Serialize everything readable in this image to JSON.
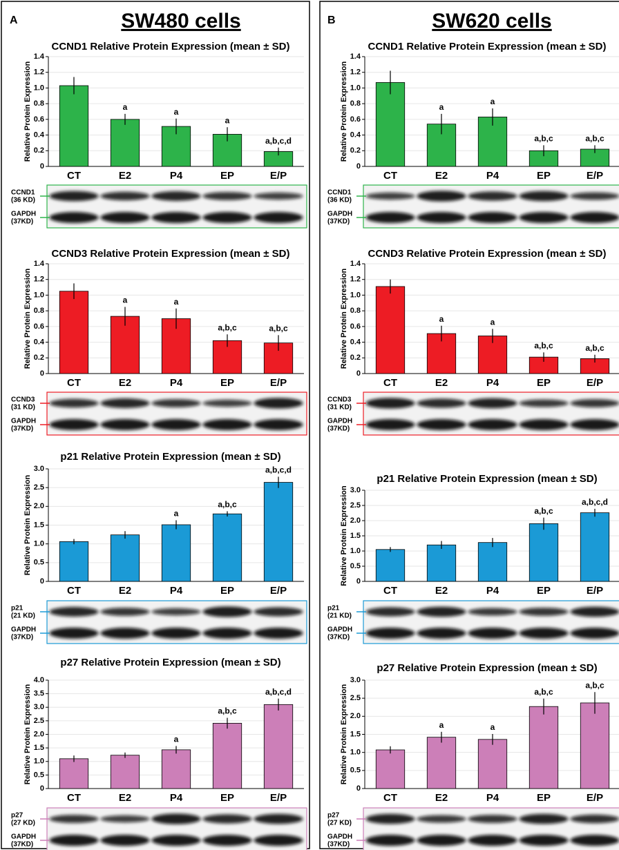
{
  "panels": [
    {
      "label": "A",
      "title": "SW480 cells"
    },
    {
      "label": "B",
      "title": "SW620 cells"
    }
  ],
  "chart_data": [
    {
      "type": "bar",
      "title": "CCND1 Relative Protein Expression (mean ± SD)",
      "y_label": "Relative Protein Expression",
      "color": "#2db34a",
      "categories": [
        "CT",
        "E2",
        "P4",
        "EP",
        "E/P"
      ],
      "values": [
        1.03,
        0.6,
        0.51,
        0.41,
        0.19
      ],
      "errors": [
        0.11,
        0.07,
        0.1,
        0.09,
        0.05
      ],
      "annotations": [
        null,
        "a",
        "a",
        "a",
        "a,b,c,d"
      ],
      "ylim": [
        0,
        1.4
      ],
      "yticks": [
        0,
        0.2,
        0.4,
        0.6,
        0.8,
        {
          "value": 1,
          "label": "1.0"
        },
        1.2,
        1.4
      ],
      "blot_labels": [
        [
          "CCND1",
          "(36 KD)"
        ],
        [
          "GAPDH",
          "(37KD)"
        ]
      ]
    },
    {
      "type": "bar",
      "title": "CCND3 Relative Protein Expression (mean ± SD)",
      "y_label": "Relative Protein Expression",
      "color": "#ed1c24",
      "categories": [
        "CT",
        "E2",
        "P4",
        "EP",
        "E/P"
      ],
      "values": [
        1.05,
        0.73,
        0.7,
        0.42,
        0.39
      ],
      "errors": [
        0.1,
        0.12,
        0.13,
        0.08,
        0.1
      ],
      "annotations": [
        null,
        "a",
        "a",
        "a,b,c",
        "a,b,c"
      ],
      "ylim": [
        0,
        1.4
      ],
      "yticks": [
        0,
        0.2,
        0.4,
        0.6,
        0.8,
        {
          "value": 1,
          "label": "1.0"
        },
        1.2,
        1.4
      ],
      "blot_labels": [
        [
          "CCND3",
          "(31 KD)"
        ],
        [
          "GAPDH",
          "(37KD)"
        ]
      ]
    },
    {
      "type": "bar",
      "title": "p21 Relative Protein Expression (mean ± SD)",
      "y_label": "Relative Protein Expression",
      "color": "#1b9ad6",
      "categories": [
        "CT",
        "E2",
        "P4",
        "EP",
        "E/P"
      ],
      "values": [
        1.06,
        1.24,
        1.51,
        1.8,
        2.64
      ],
      "errors": [
        0.07,
        0.1,
        0.12,
        0.07,
        0.15
      ],
      "annotations": [
        null,
        null,
        "a",
        "a,b,c",
        "a,b,c,d"
      ],
      "ylim": [
        0,
        3
      ],
      "yticks": [
        0,
        0.5,
        {
          "value": 1,
          "label": "1.0"
        },
        1.5,
        {
          "value": 2,
          "label": "2.0"
        },
        2.5,
        {
          "value": 3,
          "label": "3.0"
        }
      ],
      "blot_labels": [
        [
          "p21",
          "(21 KD)"
        ],
        [
          "GAPDH",
          "(37KD)"
        ]
      ]
    },
    {
      "type": "bar",
      "title": "p27 Relative Protein Expression (mean ± SD)",
      "y_label": "Relative Protein Expression",
      "color": "#cc7fb8",
      "categories": [
        "CT",
        "E2",
        "P4",
        "EP",
        "E/P"
      ],
      "values": [
        1.1,
        1.23,
        1.43,
        2.41,
        3.1
      ],
      "errors": [
        0.12,
        0.1,
        0.14,
        0.2,
        0.22
      ],
      "annotations": [
        null,
        null,
        "a",
        "a,b,c",
        "a,b,c,d"
      ],
      "ylim": [
        0,
        4
      ],
      "yticks": [
        0,
        0.5,
        {
          "value": 1,
          "label": "1.0"
        },
        1.5,
        {
          "value": 2,
          "label": "2.0"
        },
        2.5,
        {
          "value": 3,
          "label": "3.0"
        },
        3.5,
        {
          "value": 4,
          "label": "4.0"
        }
      ],
      "blot_labels": [
        [
          "p27",
          "(27 KD)"
        ],
        [
          "GAPDH",
          "(37KD)"
        ]
      ]
    },
    {
      "type": "bar",
      "title": "CCND1 Relative Protein Expression (mean ± SD)",
      "y_label": "Relative Protein Expression",
      "color": "#2db34a",
      "categories": [
        "CT",
        "E2",
        "P4",
        "EP",
        "E/P"
      ],
      "values": [
        1.07,
        0.54,
        0.63,
        0.2,
        0.22
      ],
      "errors": [
        0.15,
        0.13,
        0.11,
        0.07,
        0.05
      ],
      "annotations": [
        null,
        "a",
        "a",
        "a,b,c",
        "a,b,c"
      ],
      "ylim": [
        0,
        1.4
      ],
      "yticks": [
        0,
        0.2,
        0.4,
        0.6,
        0.8,
        {
          "value": 1,
          "label": "1.0"
        },
        1.2,
        1.4
      ],
      "blot_labels": [
        [
          "CCND1",
          "(36 KD)"
        ],
        [
          "GAPDH",
          "(37KD)"
        ]
      ]
    },
    {
      "type": "bar",
      "title": "CCND3 Relative Protein Expression (mean ± SD)",
      "y_label": "Relative Protein Expression",
      "color": "#ed1c24",
      "categories": [
        "CT",
        "E2",
        "P4",
        "EP",
        "E/P"
      ],
      "values": [
        1.11,
        0.51,
        0.48,
        0.21,
        0.19
      ],
      "errors": [
        0.09,
        0.1,
        0.09,
        0.06,
        0.05
      ],
      "annotations": [
        null,
        "a",
        "a",
        "a,b,c",
        "a,b,c"
      ],
      "ylim": [
        0,
        1.4
      ],
      "yticks": [
        0,
        0.2,
        0.4,
        0.6,
        0.8,
        {
          "value": 1,
          "label": "1.0"
        },
        1.2,
        1.4
      ],
      "blot_labels": [
        [
          "CCND3",
          "(31 KD)"
        ],
        [
          "GAPDH",
          "(37KD)"
        ]
      ]
    },
    {
      "type": "bar",
      "title": "p21 Relative Protein Expression (mean ± SD)",
      "y_label": "Relative Protein Expression",
      "color": "#1b9ad6",
      "categories": [
        "CT",
        "E2",
        "P4",
        "EP",
        "E/P"
      ],
      "values": [
        1.05,
        1.2,
        1.28,
        1.9,
        2.26
      ],
      "errors": [
        0.08,
        0.13,
        0.15,
        0.2,
        0.13
      ],
      "annotations": [
        null,
        null,
        null,
        "a,b,c",
        "a,b,c,d"
      ],
      "ylim": [
        0,
        3
      ],
      "yticks": [
        0,
        0.5,
        {
          "value": 1,
          "label": "1.0"
        },
        1.5,
        {
          "value": 2,
          "label": "2.0"
        },
        2.5,
        {
          "value": 3,
          "label": "3.0"
        }
      ],
      "blot_labels": [
        [
          "p21",
          "(21 KD)"
        ],
        [
          "GAPDH",
          "(37KD)"
        ]
      ]
    },
    {
      "type": "bar",
      "title": "p27 Relative Protein Expression (mean ± SD)",
      "y_label": "Relative Protein Expression",
      "color": "#cc7fb8",
      "categories": [
        "CT",
        "E2",
        "P4",
        "EP",
        "E/P"
      ],
      "values": [
        1.07,
        1.42,
        1.36,
        2.27,
        2.37
      ],
      "errors": [
        0.1,
        0.15,
        0.15,
        0.22,
        0.3
      ],
      "annotations": [
        null,
        "a",
        "a",
        "a,b,c",
        "a,b,c"
      ],
      "ylim": [
        0,
        3
      ],
      "yticks": [
        0,
        0.5,
        {
          "value": 1,
          "label": "1.0"
        },
        1.5,
        {
          "value": 2,
          "label": "2.0"
        },
        2.5,
        {
          "value": 3,
          "label": "3.0"
        }
      ],
      "blot_labels": [
        [
          "p27",
          "(27 KD)"
        ],
        [
          "GAPDH",
          "(37KD)"
        ]
      ]
    }
  ]
}
